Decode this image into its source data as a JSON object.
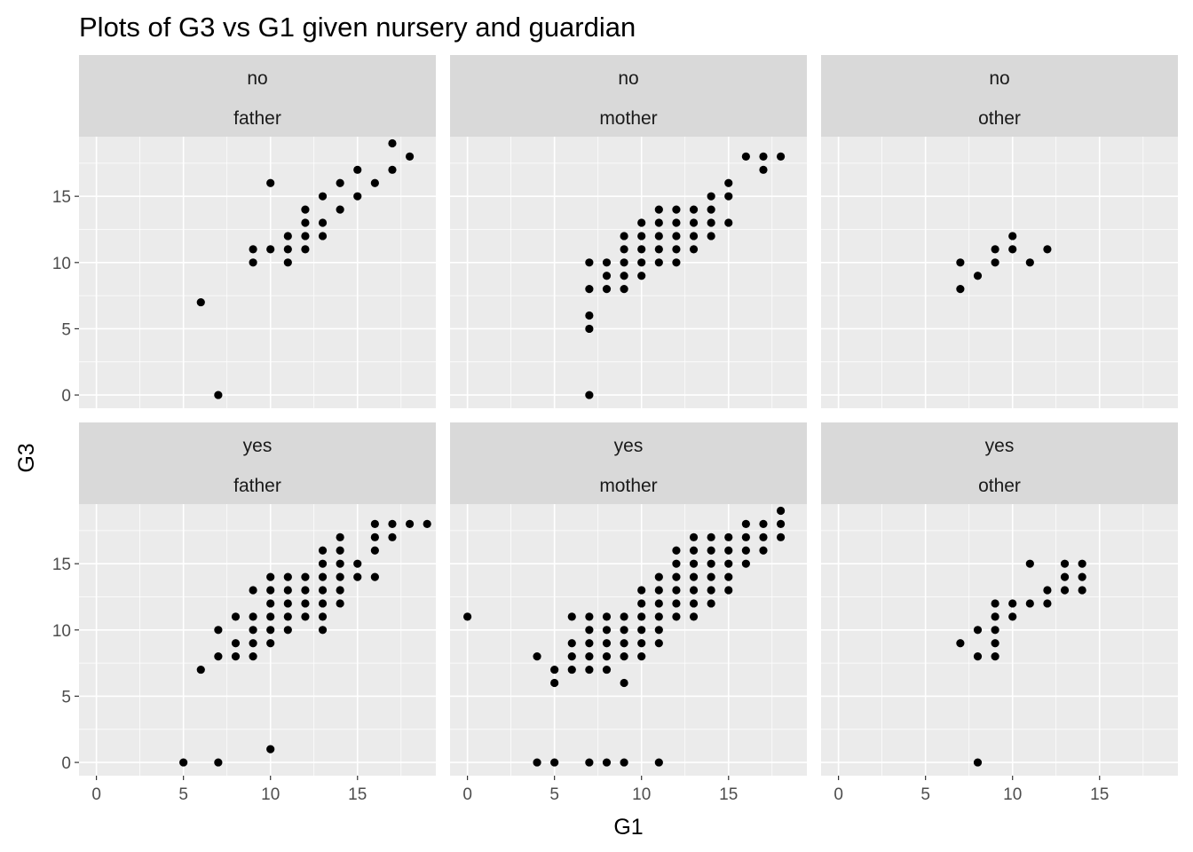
{
  "chart_data": {
    "type": "scatter",
    "title": "Plots of G3 vs G1 given nursery and guardian",
    "xlabel": "G1",
    "ylabel": "G3",
    "xlim": [
      -1,
      19.5
    ],
    "ylim": [
      -1,
      19.5
    ],
    "xticks": [
      0,
      5,
      10,
      15
    ],
    "yticks": [
      0,
      5,
      10,
      15
    ],
    "grid": true,
    "point_color": "#000000",
    "panel_background": "#ebebeb",
    "strip_background": "#d9d9d9",
    "panels": [
      {
        "nursery": "no",
        "guardian": "father",
        "points": [
          [
            6,
            7
          ],
          [
            7,
            0
          ],
          [
            9,
            10
          ],
          [
            9,
            11
          ],
          [
            10,
            11
          ],
          [
            10,
            16
          ],
          [
            11,
            10
          ],
          [
            11,
            11
          ],
          [
            11,
            12
          ],
          [
            12,
            11
          ],
          [
            12,
            12
          ],
          [
            12,
            13
          ],
          [
            12,
            14
          ],
          [
            13,
            12
          ],
          [
            13,
            13
          ],
          [
            13,
            15
          ],
          [
            14,
            14
          ],
          [
            14,
            16
          ],
          [
            15,
            15
          ],
          [
            15,
            17
          ],
          [
            16,
            16
          ],
          [
            17,
            17
          ],
          [
            17,
            19
          ],
          [
            18,
            18
          ]
        ]
      },
      {
        "nursery": "no",
        "guardian": "mother",
        "points": [
          [
            7,
            0
          ],
          [
            7,
            5
          ],
          [
            7,
            6
          ],
          [
            7,
            8
          ],
          [
            7,
            10
          ],
          [
            8,
            8
          ],
          [
            8,
            9
          ],
          [
            8,
            10
          ],
          [
            9,
            8
          ],
          [
            9,
            9
          ],
          [
            9,
            10
          ],
          [
            9,
            11
          ],
          [
            9,
            12
          ],
          [
            10,
            9
          ],
          [
            10,
            10
          ],
          [
            10,
            11
          ],
          [
            10,
            12
          ],
          [
            10,
            13
          ],
          [
            11,
            10
          ],
          [
            11,
            11
          ],
          [
            11,
            12
          ],
          [
            11,
            13
          ],
          [
            11,
            14
          ],
          [
            12,
            10
          ],
          [
            12,
            11
          ],
          [
            12,
            12
          ],
          [
            12,
            13
          ],
          [
            12,
            14
          ],
          [
            13,
            11
          ],
          [
            13,
            12
          ],
          [
            13,
            13
          ],
          [
            13,
            14
          ],
          [
            14,
            12
          ],
          [
            14,
            13
          ],
          [
            14,
            14
          ],
          [
            14,
            15
          ],
          [
            15,
            13
          ],
          [
            15,
            15
          ],
          [
            15,
            16
          ],
          [
            16,
            18
          ],
          [
            17,
            17
          ],
          [
            17,
            18
          ],
          [
            18,
            18
          ]
        ]
      },
      {
        "nursery": "no",
        "guardian": "other",
        "points": [
          [
            7,
            8
          ],
          [
            7,
            10
          ],
          [
            8,
            9
          ],
          [
            9,
            10
          ],
          [
            9,
            11
          ],
          [
            10,
            11
          ],
          [
            10,
            12
          ],
          [
            11,
            10
          ],
          [
            12,
            11
          ]
        ]
      },
      {
        "nursery": "yes",
        "guardian": "father",
        "points": [
          [
            5,
            0
          ],
          [
            6,
            7
          ],
          [
            7,
            0
          ],
          [
            7,
            8
          ],
          [
            7,
            10
          ],
          [
            8,
            8
          ],
          [
            8,
            9
          ],
          [
            8,
            11
          ],
          [
            9,
            8
          ],
          [
            9,
            9
          ],
          [
            9,
            10
          ],
          [
            9,
            11
          ],
          [
            9,
            13
          ],
          [
            10,
            1
          ],
          [
            10,
            9
          ],
          [
            10,
            10
          ],
          [
            10,
            11
          ],
          [
            10,
            12
          ],
          [
            10,
            13
          ],
          [
            10,
            14
          ],
          [
            11,
            10
          ],
          [
            11,
            11
          ],
          [
            11,
            12
          ],
          [
            11,
            13
          ],
          [
            11,
            14
          ],
          [
            12,
            11
          ],
          [
            12,
            12
          ],
          [
            12,
            13
          ],
          [
            12,
            14
          ],
          [
            13,
            10
          ],
          [
            13,
            11
          ],
          [
            13,
            12
          ],
          [
            13,
            13
          ],
          [
            13,
            14
          ],
          [
            13,
            15
          ],
          [
            13,
            16
          ],
          [
            14,
            12
          ],
          [
            14,
            13
          ],
          [
            14,
            14
          ],
          [
            14,
            15
          ],
          [
            14,
            16
          ],
          [
            14,
            17
          ],
          [
            15,
            14
          ],
          [
            15,
            15
          ],
          [
            16,
            14
          ],
          [
            16,
            16
          ],
          [
            16,
            17
          ],
          [
            16,
            18
          ],
          [
            17,
            17
          ],
          [
            17,
            18
          ],
          [
            18,
            18
          ],
          [
            19,
            18
          ]
        ]
      },
      {
        "nursery": "yes",
        "guardian": "mother",
        "points": [
          [
            0,
            11
          ],
          [
            4,
            0
          ],
          [
            4,
            8
          ],
          [
            5,
            0
          ],
          [
            5,
            6
          ],
          [
            5,
            7
          ],
          [
            6,
            7
          ],
          [
            6,
            8
          ],
          [
            6,
            9
          ],
          [
            6,
            11
          ],
          [
            7,
            0
          ],
          [
            7,
            7
          ],
          [
            7,
            8
          ],
          [
            7,
            9
          ],
          [
            7,
            10
          ],
          [
            7,
            11
          ],
          [
            8,
            0
          ],
          [
            8,
            7
          ],
          [
            8,
            8
          ],
          [
            8,
            9
          ],
          [
            8,
            10
          ],
          [
            8,
            11
          ],
          [
            9,
            0
          ],
          [
            9,
            6
          ],
          [
            9,
            8
          ],
          [
            9,
            9
          ],
          [
            9,
            10
          ],
          [
            9,
            11
          ],
          [
            10,
            8
          ],
          [
            10,
            9
          ],
          [
            10,
            10
          ],
          [
            10,
            11
          ],
          [
            10,
            12
          ],
          [
            10,
            13
          ],
          [
            11,
            0
          ],
          [
            11,
            9
          ],
          [
            11,
            10
          ],
          [
            11,
            11
          ],
          [
            11,
            12
          ],
          [
            11,
            13
          ],
          [
            11,
            14
          ],
          [
            12,
            11
          ],
          [
            12,
            12
          ],
          [
            12,
            13
          ],
          [
            12,
            14
          ],
          [
            12,
            15
          ],
          [
            12,
            16
          ],
          [
            13,
            11
          ],
          [
            13,
            12
          ],
          [
            13,
            13
          ],
          [
            13,
            14
          ],
          [
            13,
            15
          ],
          [
            13,
            16
          ],
          [
            13,
            17
          ],
          [
            14,
            12
          ],
          [
            14,
            13
          ],
          [
            14,
            14
          ],
          [
            14,
            15
          ],
          [
            14,
            16
          ],
          [
            14,
            17
          ],
          [
            15,
            13
          ],
          [
            15,
            14
          ],
          [
            15,
            15
          ],
          [
            15,
            16
          ],
          [
            15,
            17
          ],
          [
            16,
            15
          ],
          [
            16,
            16
          ],
          [
            16,
            17
          ],
          [
            16,
            18
          ],
          [
            17,
            16
          ],
          [
            17,
            17
          ],
          [
            17,
            18
          ],
          [
            18,
            17
          ],
          [
            18,
            18
          ],
          [
            18,
            19
          ]
        ]
      },
      {
        "nursery": "yes",
        "guardian": "other",
        "points": [
          [
            7,
            9
          ],
          [
            8,
            0
          ],
          [
            8,
            8
          ],
          [
            8,
            10
          ],
          [
            9,
            8
          ],
          [
            9,
            9
          ],
          [
            9,
            10
          ],
          [
            9,
            11
          ],
          [
            9,
            12
          ],
          [
            10,
            11
          ],
          [
            10,
            12
          ],
          [
            11,
            12
          ],
          [
            11,
            15
          ],
          [
            12,
            12
          ],
          [
            12,
            13
          ],
          [
            13,
            13
          ],
          [
            13,
            14
          ],
          [
            13,
            15
          ],
          [
            14,
            13
          ],
          [
            14,
            14
          ],
          [
            14,
            15
          ]
        ]
      }
    ]
  }
}
